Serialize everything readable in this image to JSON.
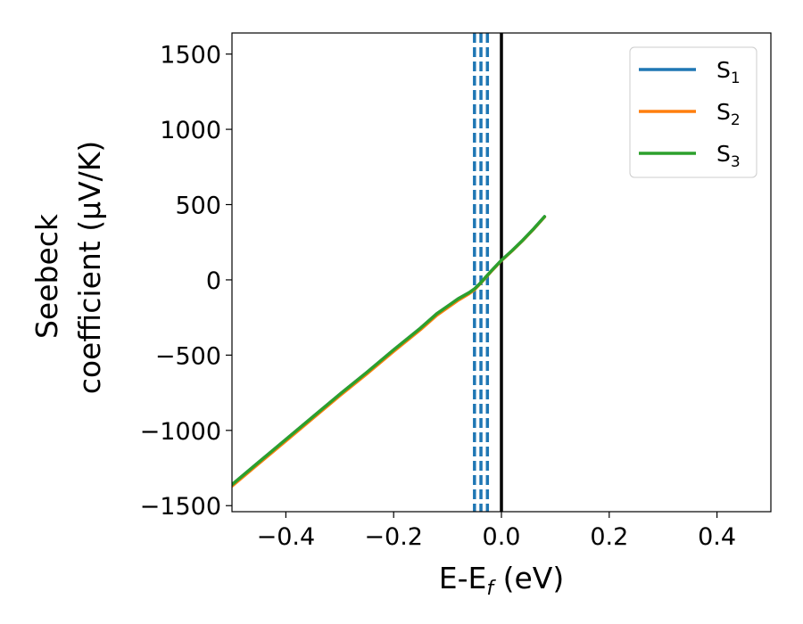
{
  "chart_data": {
    "type": "line",
    "xlabel": "E-E_f (eV)",
    "xlabel_parts": {
      "main": "E-E",
      "sub": "f",
      "tail": " (eV)"
    },
    "ylabel_lines": [
      "Seebeck",
      "coefficient  (μV/K)"
    ],
    "xlim": [
      -0.5,
      0.5
    ],
    "ylim": [
      -1540,
      1640
    ],
    "x_ticks": [
      -0.4,
      -0.2,
      0.0,
      0.2,
      0.4
    ],
    "x_tick_labels": [
      "−0.4",
      "−0.2",
      "0.0",
      "0.2",
      "0.4"
    ],
    "y_ticks": [
      -1500,
      -1000,
      -500,
      0,
      500,
      1000,
      1500
    ],
    "y_tick_labels": [
      "−1500",
      "−1000",
      "−500",
      "0",
      "500",
      "1000",
      "1500"
    ],
    "grid": false,
    "legend_position": "top-right",
    "series": [
      {
        "name": "S1",
        "label_main": "S",
        "label_sub": "1",
        "color": "#1f77b4",
        "x": [
          -0.5,
          -0.45,
          -0.4,
          -0.35,
          -0.3,
          -0.25,
          -0.2,
          -0.15,
          -0.12,
          -0.1,
          -0.08,
          -0.06,
          -0.05,
          -0.04,
          -0.02,
          0.0,
          0.02,
          0.04,
          0.06,
          0.08
        ],
        "y": [
          -1360,
          -1210,
          -1060,
          -910,
          -760,
          -615,
          -465,
          -320,
          -225,
          -175,
          -125,
          -85,
          -60,
          -25,
          55,
          130,
          195,
          265,
          340,
          420
        ]
      },
      {
        "name": "S2",
        "label_main": "S",
        "label_sub": "2",
        "color": "#ff7f0e",
        "x": [
          -0.5,
          -0.45,
          -0.4,
          -0.35,
          -0.3,
          -0.25,
          -0.2,
          -0.15,
          -0.12,
          -0.1,
          -0.08,
          -0.06,
          -0.05,
          -0.04,
          -0.02,
          0.0,
          0.02,
          0.04,
          0.06,
          0.08
        ],
        "y": [
          -1370,
          -1220,
          -1070,
          -920,
          -770,
          -625,
          -475,
          -330,
          -235,
          -185,
          -135,
          -92,
          -65,
          -28,
          52,
          128,
          193,
          263,
          338,
          418
        ]
      },
      {
        "name": "S3",
        "label_main": "S",
        "label_sub": "3",
        "color": "#2ca02c",
        "x": [
          -0.5,
          -0.45,
          -0.4,
          -0.35,
          -0.3,
          -0.25,
          -0.2,
          -0.15,
          -0.12,
          -0.1,
          -0.08,
          -0.06,
          -0.05,
          -0.04,
          -0.02,
          0.0,
          0.02,
          0.04,
          0.06,
          0.08
        ],
        "y": [
          -1360,
          -1210,
          -1060,
          -910,
          -760,
          -615,
          -465,
          -320,
          -225,
          -175,
          -125,
          -85,
          -60,
          -25,
          55,
          130,
          195,
          265,
          340,
          420
        ]
      }
    ],
    "vertical_lines": [
      {
        "x": -0.05,
        "style": "dashed",
        "color": "#1f77b4"
      },
      {
        "x": -0.038,
        "style": "dashed",
        "color": "#1f77b4"
      },
      {
        "x": -0.026,
        "style": "dashed",
        "color": "#1f77b4"
      },
      {
        "x": 0.0,
        "style": "solid",
        "color": "#000000"
      }
    ]
  }
}
